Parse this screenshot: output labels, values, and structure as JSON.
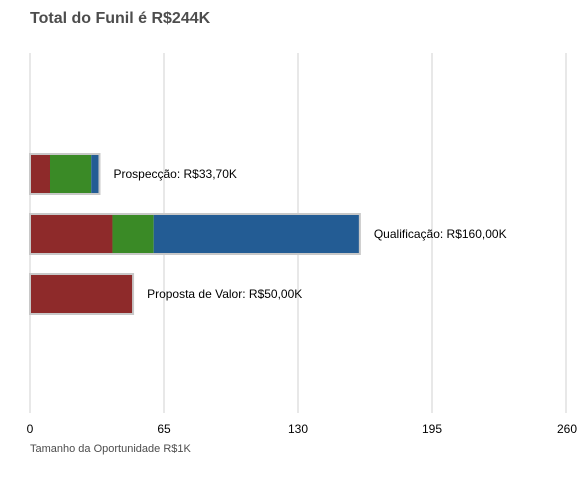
{
  "chart_data": {
    "type": "bar",
    "orientation": "horizontal",
    "stacked": true,
    "title": "Total do Funil é R$244K",
    "xlabel": "Tamanho da Oportunidade R$1K",
    "ylabel": "",
    "xlim": [
      0,
      260
    ],
    "xticks": [
      0,
      65,
      130,
      195,
      260
    ],
    "grid": true,
    "categories": [
      "Prospecção",
      "Qualificação",
      "Proposta de Valor"
    ],
    "category_labels": [
      "Prospecção: R$33,70K",
      "Qualificação: R$160,00K",
      "Proposta de Valor: R$50,00K"
    ],
    "series": [
      {
        "values": [
          9.7,
          40,
          50
        ],
        "color": "#8e2a2a"
      },
      {
        "values": [
          20,
          20,
          0
        ],
        "color": "#3a8a26"
      },
      {
        "values": [
          4,
          100,
          0
        ],
        "color": "#235c94"
      }
    ]
  }
}
